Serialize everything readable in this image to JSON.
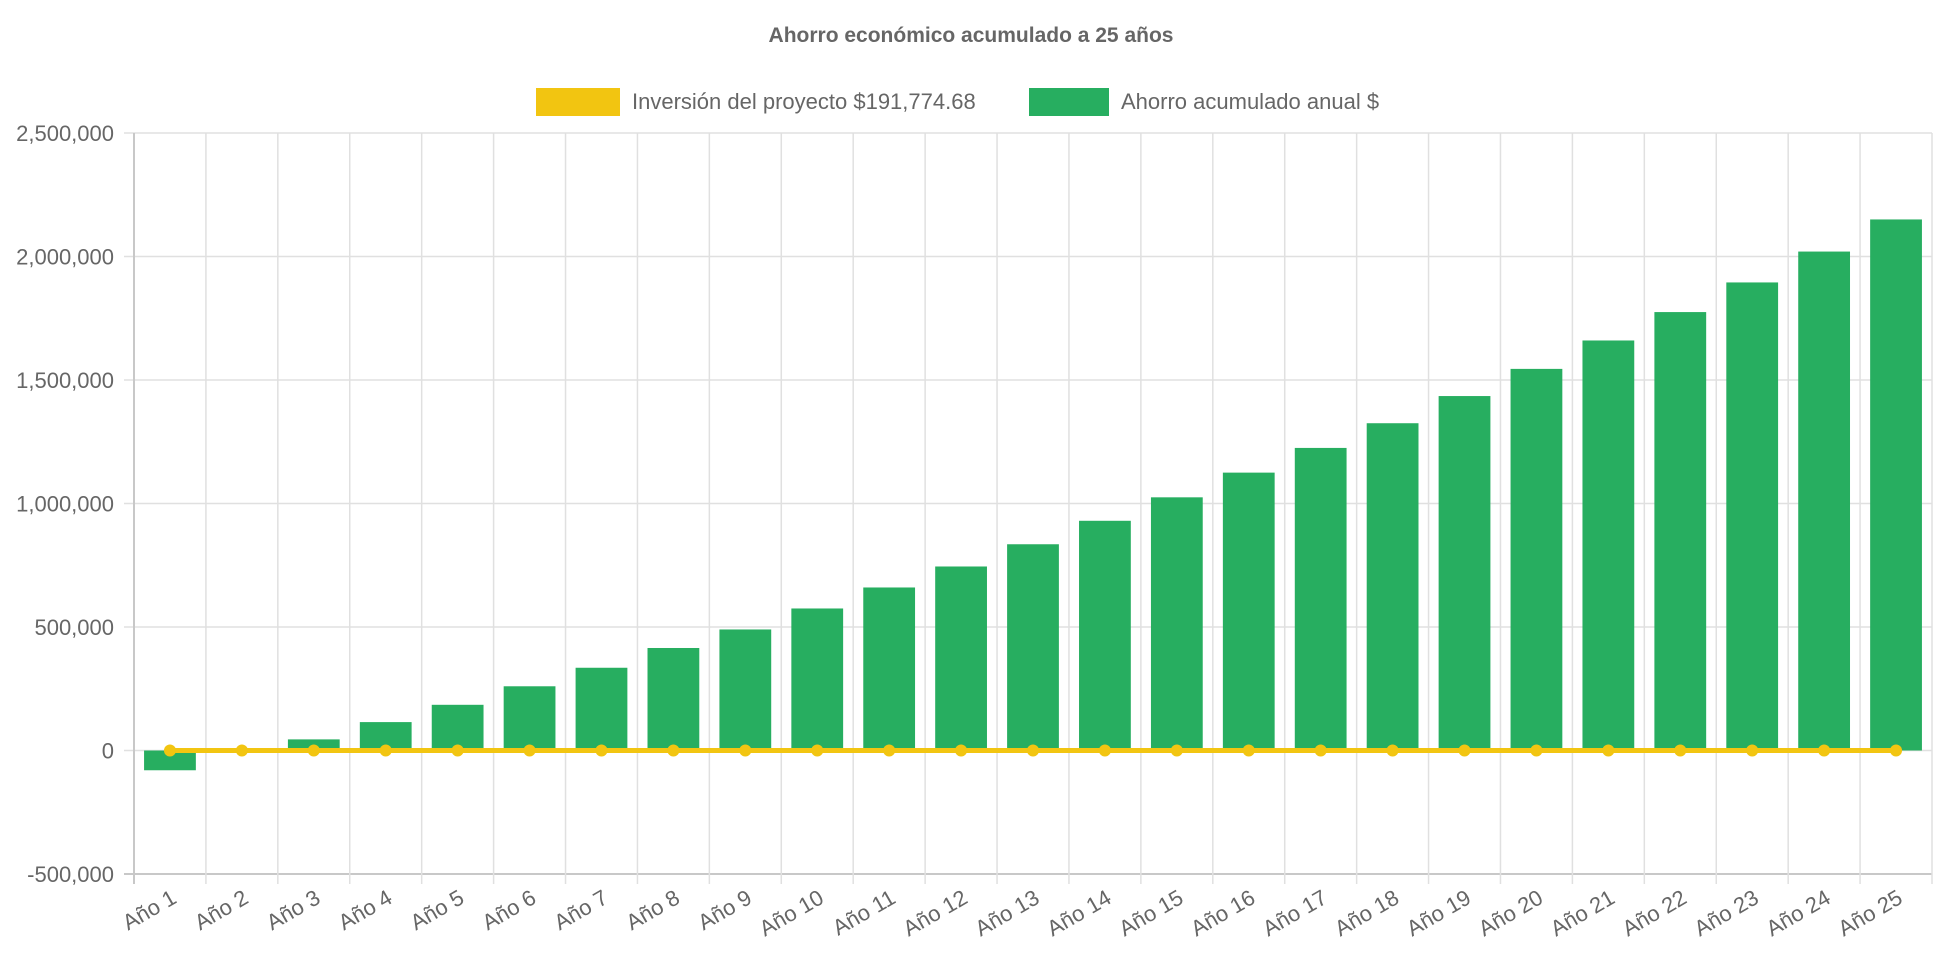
{
  "chart_data": {
    "type": "bar",
    "title": "Ahorro económico acumulado a 25 años",
    "categories": [
      "Año 1",
      "Año 2",
      "Año 3",
      "Año 4",
      "Año 5",
      "Año 6",
      "Año 7",
      "Año 8",
      "Año 9",
      "Año 10",
      "Año 11",
      "Año 12",
      "Año 13",
      "Año 14",
      "Año 15",
      "Año 16",
      "Año 17",
      "Año 18",
      "Año 19",
      "Año 20",
      "Año 21",
      "Año 22",
      "Año 23",
      "Año 24",
      "Año 25"
    ],
    "series": [
      {
        "name": "Inversión del proyecto $191,774.68",
        "type": "line",
        "color": "#f2c511",
        "values": [
          0,
          0,
          0,
          0,
          0,
          0,
          0,
          0,
          0,
          0,
          0,
          0,
          0,
          0,
          0,
          0,
          0,
          0,
          0,
          0,
          0,
          0,
          0,
          0,
          0
        ]
      },
      {
        "name": "Ahorro acumulado anual $",
        "type": "bar",
        "color": "#27ae60",
        "values": [
          -80000,
          -10000,
          45000,
          115000,
          185000,
          260000,
          335000,
          415000,
          490000,
          575000,
          660000,
          745000,
          835000,
          930000,
          1025000,
          1125000,
          1225000,
          1325000,
          1435000,
          1545000,
          1660000,
          1775000,
          1895000,
          2020000,
          2150000
        ]
      }
    ],
    "ylim": [
      -500000,
      2500000
    ],
    "yticks": [
      "-500,000",
      "0",
      "500,000",
      "1,000,000",
      "1,500,000",
      "2,000,000",
      "2,500,000"
    ],
    "ytick_values": [
      -500000,
      0,
      500000,
      1000000,
      1500000,
      2000000,
      2500000
    ],
    "grid": true,
    "legend": "top"
  }
}
